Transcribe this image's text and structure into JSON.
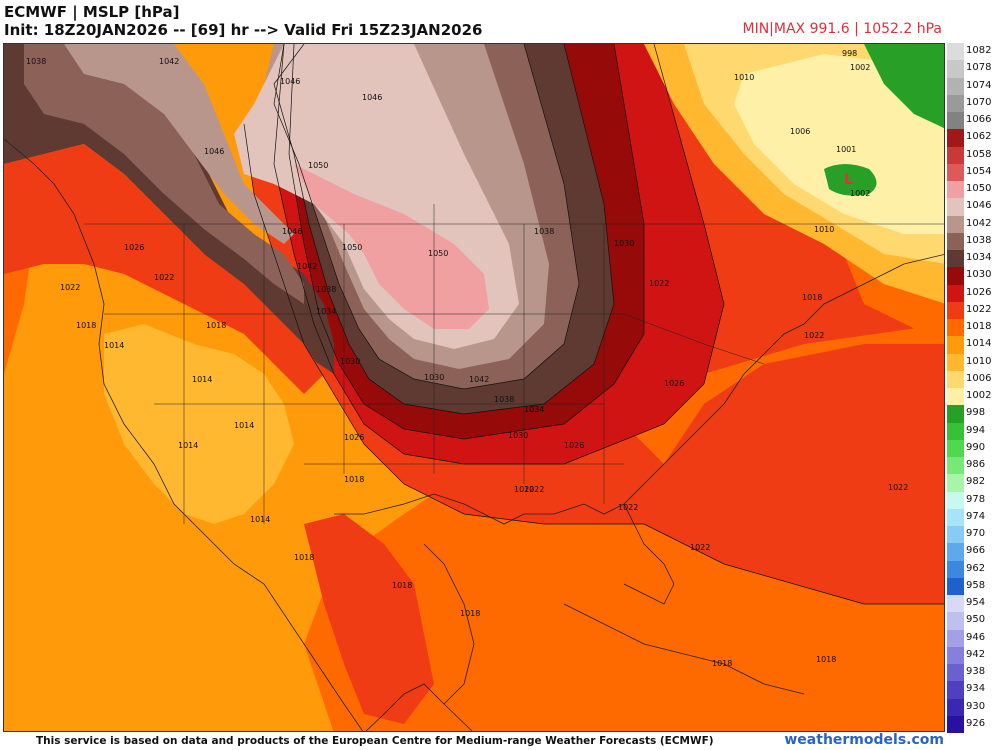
{
  "header": {
    "title": "ECMWF | MSLP [hPa]",
    "init_line": "Init: 18Z20JAN2026 -- [69] hr --> Valid Fri 15Z23JAN2026",
    "minmax": "MIN|MAX 991.6 | 1052.2 hPa"
  },
  "legend": {
    "levels": [
      {
        "label": "1082",
        "color": "#dcdcdc"
      },
      {
        "label": "1078",
        "color": "#c8c8c8"
      },
      {
        "label": "1074",
        "color": "#b2b2b2"
      },
      {
        "label": "1070",
        "color": "#9a9a9a"
      },
      {
        "label": "1066",
        "color": "#828282"
      },
      {
        "label": "1062",
        "color": "#a01818"
      },
      {
        "label": "1058",
        "color": "#c83a3a"
      },
      {
        "label": "1054",
        "color": "#dc5a5a"
      },
      {
        "label": "1050",
        "color": "#f0a0a0"
      },
      {
        "label": "1046",
        "color": "#e2c4bc"
      },
      {
        "label": "1042",
        "color": "#b8968c"
      },
      {
        "label": "1038",
        "color": "#8c6258"
      },
      {
        "label": "1034",
        "color": "#5e3a32"
      },
      {
        "label": "1030",
        "color": "#960a0a"
      },
      {
        "label": "1026",
        "color": "#d01414"
      },
      {
        "label": "1022",
        "color": "#f03c14"
      },
      {
        "label": "1018",
        "color": "#ff6a00"
      },
      {
        "label": "1014",
        "color": "#ff9a0a"
      },
      {
        "label": "1010",
        "color": "#ffb830"
      },
      {
        "label": "1006",
        "color": "#ffd870"
      },
      {
        "label": "1002",
        "color": "#fff0a8"
      },
      {
        "label": "998",
        "color": "#28a028"
      },
      {
        "label": "994",
        "color": "#38c038"
      },
      {
        "label": "990",
        "color": "#50d850"
      },
      {
        "label": "986",
        "color": "#78e878"
      },
      {
        "label": "982",
        "color": "#a8f4a8"
      },
      {
        "label": "978",
        "color": "#c8f8f0"
      },
      {
        "label": "974",
        "color": "#a8e4f8"
      },
      {
        "label": "970",
        "color": "#88ccf4"
      },
      {
        "label": "966",
        "color": "#60a8ec"
      },
      {
        "label": "962",
        "color": "#3c88e0"
      },
      {
        "label": "958",
        "color": "#2060cc"
      },
      {
        "label": "954",
        "color": "#d8d8f8"
      },
      {
        "label": "950",
        "color": "#c0c0f0"
      },
      {
        "label": "946",
        "color": "#a4a0e8"
      },
      {
        "label": "942",
        "color": "#8680dc"
      },
      {
        "label": "938",
        "color": "#6a60d0"
      },
      {
        "label": "934",
        "color": "#5040c0"
      },
      {
        "label": "930",
        "color": "#3a28b0"
      },
      {
        "label": "926",
        "color": "#2810a0"
      }
    ]
  },
  "contour_labels": [
    {
      "text": "1038"
    },
    {
      "text": "1042"
    },
    {
      "text": "1046"
    },
    {
      "text": "1046"
    },
    {
      "text": "1046"
    },
    {
      "text": "1050"
    },
    {
      "text": "1050"
    },
    {
      "text": "1050"
    },
    {
      "text": "1046"
    },
    {
      "text": "1042"
    },
    {
      "text": "1038"
    },
    {
      "text": "1034"
    },
    {
      "text": "1030"
    },
    {
      "text": "1026"
    },
    {
      "text": "1022"
    },
    {
      "text": "1018"
    },
    {
      "text": "1014"
    },
    {
      "text": "1014"
    },
    {
      "text": "1014"
    },
    {
      "text": "1014"
    },
    {
      "text": "1018"
    },
    {
      "text": "1022"
    },
    {
      "text": "1026"
    },
    {
      "text": "1030"
    },
    {
      "text": "1034"
    },
    {
      "text": "1038"
    },
    {
      "text": "1042"
    },
    {
      "text": "1022"
    },
    {
      "text": "1022"
    },
    {
      "text": "1018"
    },
    {
      "text": "1018"
    },
    {
      "text": "1018"
    },
    {
      "text": "1014"
    },
    {
      "text": "1018"
    },
    {
      "text": "1018"
    },
    {
      "text": "1010"
    },
    {
      "text": "1006"
    },
    {
      "text": "1001"
    },
    {
      "text": "1002"
    },
    {
      "text": "998"
    },
    {
      "text": "1002"
    },
    {
      "text": "1010"
    },
    {
      "text": "1018"
    },
    {
      "text": "1022"
    },
    {
      "text": "1022"
    },
    {
      "text": "1022"
    },
    {
      "text": "1022"
    },
    {
      "text": "1026"
    },
    {
      "text": "1030"
    },
    {
      "text": "1038"
    },
    {
      "text": "1034"
    },
    {
      "text": "1030"
    },
    {
      "text": "1026"
    },
    {
      "text": "1022"
    },
    {
      "text": "1018"
    }
  ],
  "low_marker": "L",
  "footer": {
    "disclaimer": "This service is based on data and products of the European Centre for Medium-range Weather Forecasts (ECMWF)",
    "brand": "weathermodels.com"
  }
}
